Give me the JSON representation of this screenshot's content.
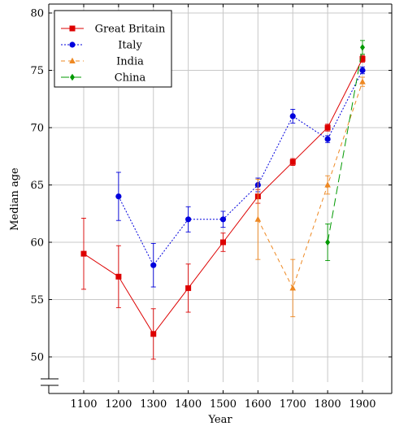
{
  "chart_data": {
    "type": "line",
    "xlabel": "Year",
    "ylabel": "Median age",
    "x_ticks": [
      1100,
      1200,
      1300,
      1400,
      1500,
      1600,
      1700,
      1800,
      1900
    ],
    "y_ticks": [
      50,
      55,
      60,
      65,
      70,
      75,
      80
    ],
    "xlim": [
      1000,
      2000
    ],
    "ylim": [
      48,
      80
    ],
    "y_axis_break": true,
    "grid": true,
    "legend_position": "top-left",
    "series": [
      {
        "name": "Great Britain",
        "color": "#dd0000",
        "line_style": "solid",
        "marker": "square",
        "x": [
          1100,
          1200,
          1300,
          1400,
          1500,
          1600,
          1700,
          1800,
          1900
        ],
        "y": [
          59,
          57,
          52,
          56,
          60,
          64,
          67,
          70,
          76
        ],
        "err": [
          3.1,
          2.7,
          2.2,
          2.1,
          0.8,
          0.6,
          0.3,
          0.3,
          0.3
        ]
      },
      {
        "name": "Italy",
        "color": "#0000dd",
        "line_style": "dotted",
        "marker": "circle",
        "x": [
          1200,
          1300,
          1400,
          1500,
          1600,
          1700,
          1800,
          1900
        ],
        "y": [
          64,
          58,
          62,
          62,
          65,
          71,
          69,
          75
        ],
        "err": [
          2.1,
          1.9,
          1.1,
          0.7,
          0.6,
          0.6,
          0.3,
          0.3
        ]
      },
      {
        "name": "India",
        "color": "#ee8822",
        "line_style": "dashed",
        "marker": "triangle",
        "x": [
          1600,
          1700,
          1800,
          1900
        ],
        "y": [
          62,
          56,
          65,
          74
        ],
        "err": [
          3.5,
          2.5,
          0.8,
          0.4
        ]
      },
      {
        "name": "China",
        "color": "#009900",
        "line_style": "longdash",
        "marker": "diamond",
        "x": [
          1800,
          1900
        ],
        "y": [
          60,
          77
        ],
        "err": [
          1.6,
          0.6
        ]
      }
    ]
  }
}
